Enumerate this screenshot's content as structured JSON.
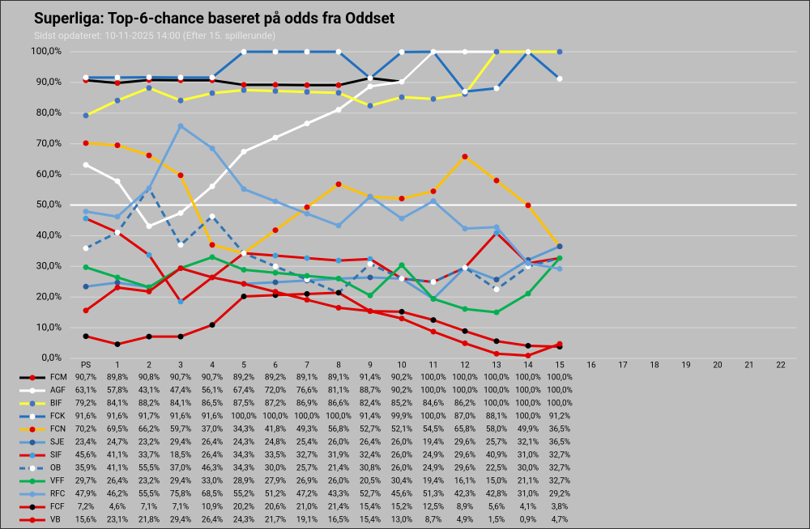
{
  "chart_data": {
    "type": "line",
    "title": "Superliga: Top-6-chance baseret på odds fra Oddset",
    "subtitle": "Sidst opdateret: 10-11-2025 14:00 (Efter 15. spillerunde)",
    "categories": [
      "PS",
      "1",
      "2",
      "3",
      "4",
      "5",
      "6",
      "7",
      "8",
      "9",
      "10",
      "11",
      "12",
      "13",
      "14",
      "15",
      "16",
      "17",
      "18",
      "19",
      "20",
      "21",
      "22"
    ],
    "ylim": [
      0,
      100
    ],
    "yticks": [
      {
        "value": 0,
        "label": "0,0%"
      },
      {
        "value": 10,
        "label": "10,0%"
      },
      {
        "value": 20,
        "label": "20,0%"
      },
      {
        "value": 30,
        "label": "30,0%"
      },
      {
        "value": 40,
        "label": "40,0%"
      },
      {
        "value": 50,
        "label": "50,0%"
      },
      {
        "value": 60,
        "label": "60,0%"
      },
      {
        "value": 70,
        "label": "70,0%"
      },
      {
        "value": 80,
        "label": "80,0%"
      },
      {
        "value": 90,
        "label": "90,0%"
      },
      {
        "value": 100,
        "label": "100,0%"
      }
    ],
    "grid": true,
    "reference_line": 50,
    "series": [
      {
        "name": "FCM",
        "color": "#000000",
        "marker_color": "#e00000",
        "values": [
          90.7,
          89.8,
          90.8,
          90.7,
          90.7,
          89.2,
          89.2,
          89.1,
          89.1,
          91.4,
          90.2,
          100,
          100,
          100,
          100,
          100,
          null,
          null,
          null,
          null,
          null,
          null,
          null
        ],
        "value_labels": [
          "90,7%",
          "89,8%",
          "90,8%",
          "90,7%",
          "90,7%",
          "89,2%",
          "89,2%",
          "89,1%",
          "89,1%",
          "91,4%",
          "90,2%",
          "100,0%",
          "100,0%",
          "100,0%",
          "100,0%",
          "100,0%",
          null,
          null,
          null,
          null,
          null,
          null,
          null
        ]
      },
      {
        "name": "AGF",
        "color": "#ffffff",
        "marker_color": "#ffffff",
        "values": [
          63.1,
          57.8,
          43.1,
          47.4,
          56.1,
          67.4,
          72.0,
          76.6,
          81.1,
          88.7,
          90.2,
          100,
          100,
          100,
          100,
          100,
          null,
          null,
          null,
          null,
          null,
          null,
          null
        ],
        "value_labels": [
          "63,1%",
          "57,8%",
          "43,1%",
          "47,4%",
          "56,1%",
          "67,4%",
          "72,0%",
          "76,6%",
          "81,1%",
          "88,7%",
          "90,2%",
          "100,0%",
          "100,0%",
          "100,0%",
          "100,0%",
          "100,0%",
          null,
          null,
          null,
          null,
          null,
          null,
          null
        ]
      },
      {
        "name": "BIF",
        "color": "#ffff33",
        "marker_color": "#4472c4",
        "values": [
          79.2,
          84.1,
          88.2,
          84.1,
          86.5,
          87.5,
          87.2,
          86.9,
          86.6,
          82.4,
          85.2,
          84.6,
          86.2,
          100,
          100,
          100,
          null,
          null,
          null,
          null,
          null,
          null,
          null
        ],
        "value_labels": [
          "79,2%",
          "84,1%",
          "88,2%",
          "84,1%",
          "86,5%",
          "87,5%",
          "87,2%",
          "86,9%",
          "86,6%",
          "82,4%",
          "85,2%",
          "84,6%",
          "86,2%",
          "100,0%",
          "100,0%",
          "100,0%",
          null,
          null,
          null,
          null,
          null,
          null,
          null
        ]
      },
      {
        "name": "FCK",
        "color": "#1f6fc0",
        "marker_color": "#ffffff",
        "values": [
          91.6,
          91.6,
          91.7,
          91.6,
          91.6,
          100,
          100,
          100,
          100,
          91.4,
          99.9,
          100,
          87.0,
          88.1,
          100,
          91.2,
          null,
          null,
          null,
          null,
          null,
          null,
          null
        ],
        "value_labels": [
          "91,6%",
          "91,6%",
          "91,7%",
          "91,6%",
          "91,6%",
          "100,0%",
          "100,0%",
          "100,0%",
          "100,0%",
          "91,4%",
          "99,9%",
          "100,0%",
          "87,0%",
          "88,1%",
          "100,0%",
          "91,2%",
          null,
          null,
          null,
          null,
          null,
          null,
          null
        ]
      },
      {
        "name": "FCN",
        "color": "#ffc000",
        "marker_color": "#e00000",
        "values": [
          70.2,
          69.5,
          66.2,
          59.7,
          37.0,
          34.3,
          41.8,
          49.3,
          56.8,
          52.7,
          52.1,
          54.5,
          65.8,
          58.0,
          49.9,
          36.5,
          null,
          null,
          null,
          null,
          null,
          null,
          null
        ],
        "value_labels": [
          "70,2%",
          "69,5%",
          "66,2%",
          "59,7%",
          "37,0%",
          "34,3%",
          "41,8%",
          "49,3%",
          "56,8%",
          "52,7%",
          "52,1%",
          "54,5%",
          "65,8%",
          "58,0%",
          "49,9%",
          "36,5%",
          null,
          null,
          null,
          null,
          null,
          null,
          null
        ]
      },
      {
        "name": "SJE",
        "color": "#5b9bd5",
        "marker_color": "#2e5c9a",
        "values": [
          23.4,
          24.7,
          23.2,
          29.4,
          26.4,
          24.3,
          24.8,
          25.4,
          26.0,
          26.4,
          26.0,
          19.4,
          29.6,
          25.7,
          32.1,
          36.5,
          null,
          null,
          null,
          null,
          null,
          null,
          null
        ],
        "value_labels": [
          "23,4%",
          "24,7%",
          "23,2%",
          "29,4%",
          "26,4%",
          "24,3%",
          "24,8%",
          "25,4%",
          "26,0%",
          "26,4%",
          "26,0%",
          "19,4%",
          "29,6%",
          "25,7%",
          "32,1%",
          "36,5%",
          null,
          null,
          null,
          null,
          null,
          null,
          null
        ]
      },
      {
        "name": "SIF",
        "color": "#e00000",
        "marker_color": "#3aa0e0",
        "values": [
          45.6,
          41.1,
          33.7,
          18.5,
          26.4,
          34.3,
          33.5,
          32.7,
          31.9,
          32.4,
          26.0,
          24.9,
          29.6,
          40.9,
          31.0,
          32.7,
          null,
          null,
          null,
          null,
          null,
          null,
          null
        ],
        "value_labels": [
          "45,6%",
          "41,1%",
          "33,7%",
          "18,5%",
          "26,4%",
          "34,3%",
          "33,5%",
          "32,7%",
          "31,9%",
          "32,4%",
          "26,0%",
          "24,9%",
          "29,6%",
          "40,9%",
          "31,0%",
          "32,7%",
          null,
          null,
          null,
          null,
          null,
          null,
          null
        ]
      },
      {
        "name": "OB",
        "color": "#2e75b6",
        "marker_color": "#ffffff",
        "dashed": true,
        "values": [
          35.9,
          41.1,
          55.5,
          37.0,
          46.3,
          34.3,
          30.0,
          25.7,
          21.4,
          30.8,
          26.0,
          24.9,
          29.6,
          22.5,
          30.0,
          32.7,
          null,
          null,
          null,
          null,
          null,
          null,
          null
        ],
        "value_labels": [
          "35,9%",
          "41,1%",
          "55,5%",
          "37,0%",
          "46,3%",
          "34,3%",
          "30,0%",
          "25,7%",
          "21,4%",
          "30,8%",
          "26,0%",
          "24,9%",
          "29,6%",
          "22,5%",
          "30,0%",
          "32,7%",
          null,
          null,
          null,
          null,
          null,
          null,
          null
        ]
      },
      {
        "name": "VFF",
        "color": "#00b050",
        "marker_color": "#00b050",
        "values": [
          29.7,
          26.4,
          23.2,
          29.4,
          33.0,
          28.9,
          27.9,
          26.9,
          26.0,
          20.5,
          30.4,
          19.4,
          16.1,
          15.0,
          21.1,
          32.7,
          null,
          null,
          null,
          null,
          null,
          null,
          null
        ],
        "value_labels": [
          "29,7%",
          "26,4%",
          "23,2%",
          "29,4%",
          "33,0%",
          "28,9%",
          "27,9%",
          "26,9%",
          "26,0%",
          "20,5%",
          "30,4%",
          "19,4%",
          "16,1%",
          "15,0%",
          "21,1%",
          "32,7%",
          null,
          null,
          null,
          null,
          null,
          null,
          null
        ]
      },
      {
        "name": "RFC",
        "color": "#6aa3dc",
        "marker_color": "#6aa3dc",
        "values": [
          47.9,
          46.2,
          55.5,
          75.8,
          68.5,
          55.2,
          51.2,
          47.2,
          43.3,
          52.7,
          45.6,
          51.3,
          42.3,
          42.8,
          31.0,
          29.2,
          null,
          null,
          null,
          null,
          null,
          null,
          null
        ],
        "value_labels": [
          "47,9%",
          "46,2%",
          "55,5%",
          "75,8%",
          "68,5%",
          "55,2%",
          "51,2%",
          "47,2%",
          "43,3%",
          "52,7%",
          "45,6%",
          "51,3%",
          "42,3%",
          "42,8%",
          "31,0%",
          "29,2%",
          null,
          null,
          null,
          null,
          null,
          null,
          null
        ]
      },
      {
        "name": "FCF",
        "color": "#e00000",
        "marker_color": "#000000",
        "values": [
          7.2,
          4.6,
          7.1,
          7.1,
          10.9,
          20.2,
          20.6,
          21.0,
          21.4,
          15.4,
          15.2,
          12.5,
          8.9,
          5.6,
          4.1,
          3.8,
          null,
          null,
          null,
          null,
          null,
          null,
          null
        ],
        "value_labels": [
          "7,2%",
          "4,6%",
          "7,1%",
          "7,1%",
          "10,9%",
          "20,2%",
          "20,6%",
          "21,0%",
          "21,4%",
          "15,4%",
          "15,2%",
          "12,5%",
          "8,9%",
          "5,6%",
          "4,1%",
          "3,8%",
          null,
          null,
          null,
          null,
          null,
          null,
          null
        ]
      },
      {
        "name": "VB",
        "color": "#e00000",
        "marker_color": "#e00000",
        "values": [
          15.6,
          23.1,
          21.8,
          29.4,
          26.4,
          24.3,
          21.7,
          19.1,
          16.5,
          15.4,
          13.0,
          8.7,
          4.9,
          1.5,
          0.9,
          4.7,
          null,
          null,
          null,
          null,
          null,
          null,
          null
        ],
        "value_labels": [
          "15,6%",
          "23,1%",
          "21,8%",
          "29,4%",
          "26,4%",
          "24,3%",
          "21,7%",
          "19,1%",
          "16,5%",
          "15,4%",
          "13,0%",
          "8,7%",
          "4,9%",
          "1,5%",
          "0,9%",
          "4,7%",
          null,
          null,
          null,
          null,
          null,
          null,
          null
        ]
      }
    ]
  }
}
